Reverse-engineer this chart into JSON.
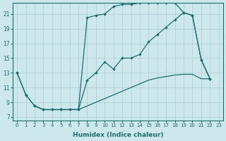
{
  "xlabel": "Humidex (Indice chaleur)",
  "bg_color": "#cce8ec",
  "grid_color": "#aacdd3",
  "line_color": "#1a6e6e",
  "xlim": [
    -0.5,
    23.5
  ],
  "ylim": [
    6.5,
    22.5
  ],
  "yticks": [
    7,
    9,
    11,
    13,
    15,
    17,
    19,
    21
  ],
  "xticks": [
    0,
    1,
    2,
    3,
    4,
    5,
    6,
    7,
    8,
    9,
    10,
    11,
    12,
    13,
    14,
    15,
    16,
    17,
    18,
    19,
    20,
    21,
    22,
    23
  ],
  "top_x": [
    0,
    1,
    2,
    3,
    4,
    5,
    6,
    7,
    8,
    9,
    10,
    11,
    12,
    13,
    14,
    15,
    16,
    17,
    18,
    19,
    20,
    21,
    22
  ],
  "top_y": [
    13,
    10,
    8.5,
    8.0,
    8.0,
    8.0,
    8.0,
    8.0,
    20.5,
    20.8,
    21.0,
    22.0,
    22.3,
    22.3,
    22.5,
    22.5,
    22.5,
    22.5,
    22.5,
    21.2,
    20.8,
    14.8,
    12.2
  ],
  "mid_x": [
    0,
    1,
    2,
    3,
    4,
    5,
    6,
    7,
    8,
    9,
    10,
    11,
    12,
    13,
    14,
    15,
    16,
    17,
    18,
    19,
    20,
    21,
    22
  ],
  "mid_y": [
    13,
    10,
    8.5,
    8.0,
    8.0,
    8.0,
    8.0,
    8.0,
    12.0,
    13.0,
    14.5,
    13.5,
    15.0,
    15.0,
    15.5,
    17.2,
    18.2,
    19.2,
    20.2,
    21.2,
    20.8,
    14.8,
    12.2
  ],
  "bot_x": [
    2,
    3,
    4,
    5,
    6,
    7,
    8,
    9,
    10,
    11,
    12,
    13,
    14,
    15,
    16,
    17,
    18,
    19,
    20,
    21,
    22
  ],
  "bot_y": [
    8.5,
    8.0,
    8.0,
    8.0,
    8.0,
    8.0,
    8.5,
    9.0,
    9.5,
    10.0,
    10.5,
    11.0,
    11.5,
    12.0,
    12.3,
    12.5,
    12.7,
    12.8,
    12.8,
    12.2,
    12.2
  ]
}
